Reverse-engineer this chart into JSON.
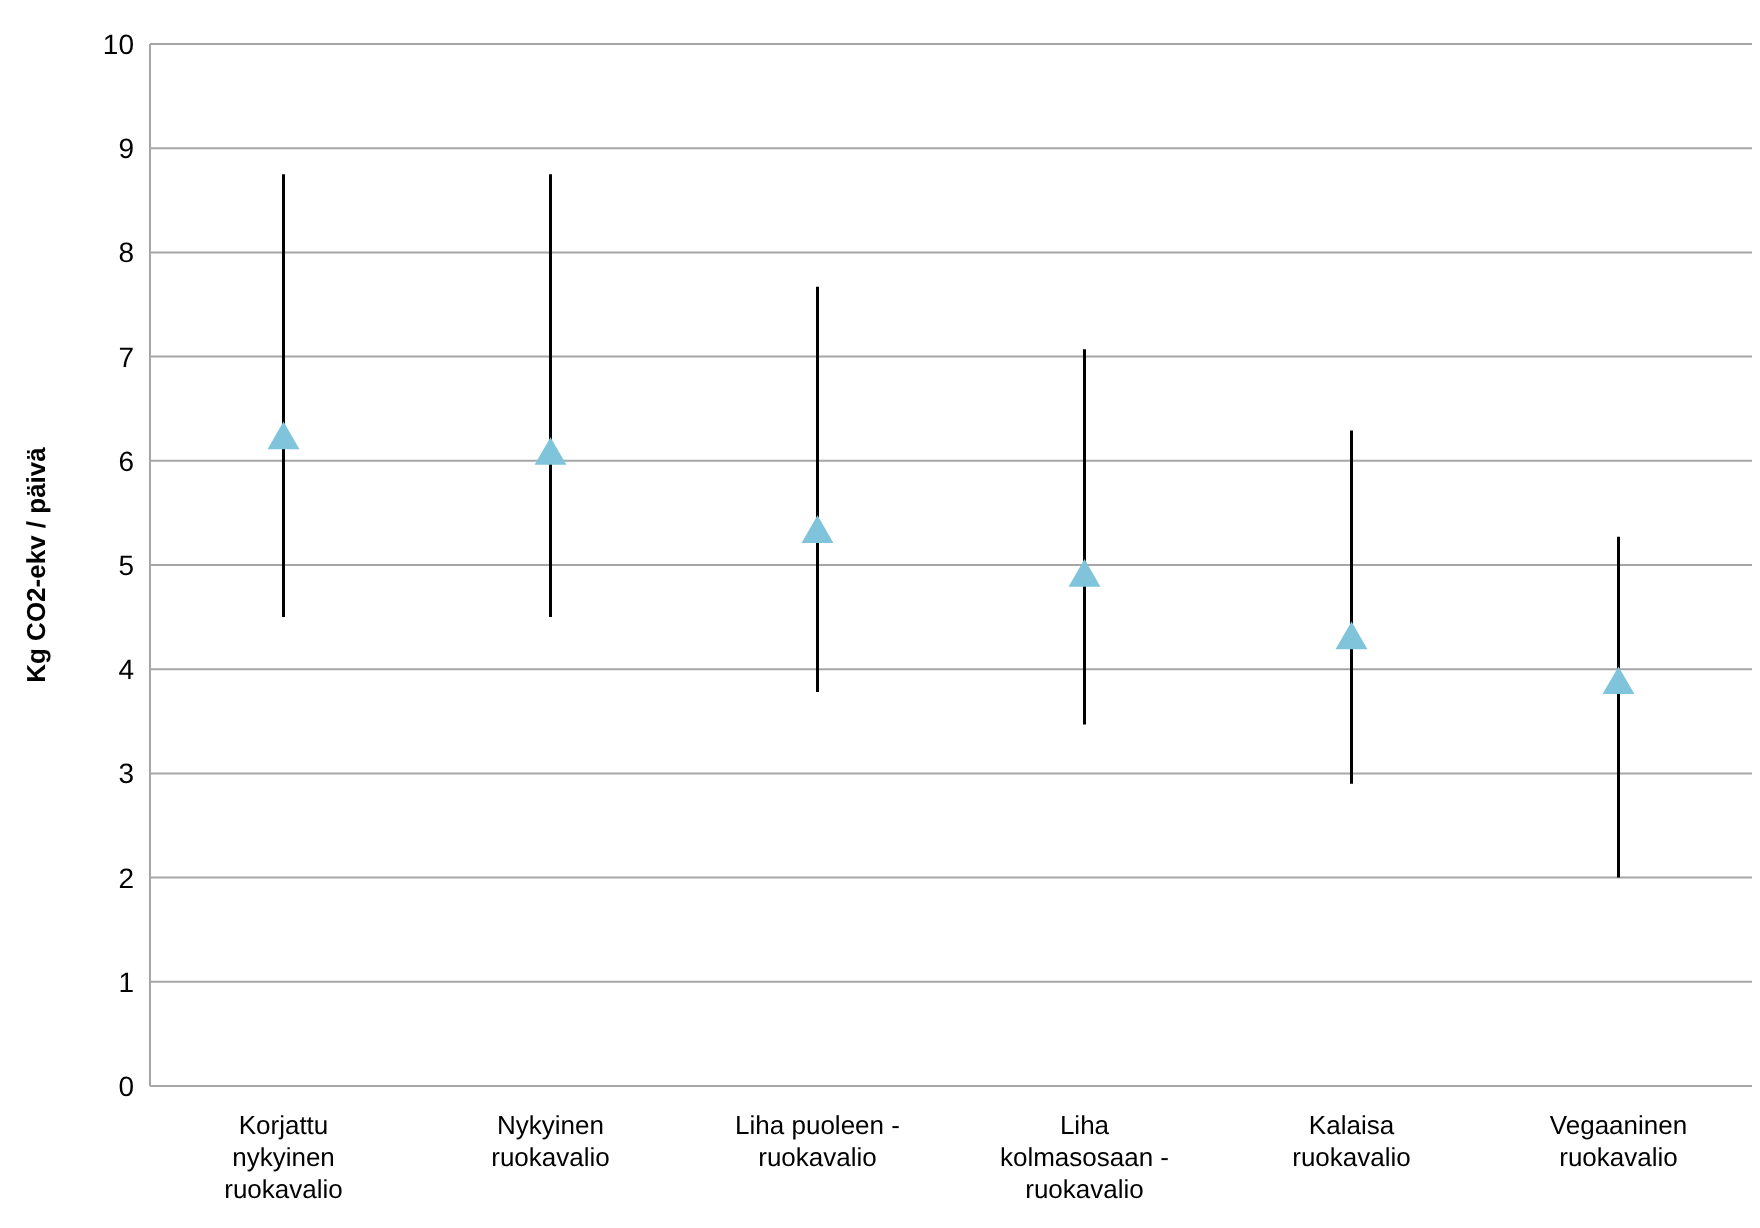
{
  "chart_data": {
    "type": "scatter",
    "ylabel": "Kg CO2-ekv / päivä",
    "categories": [
      "Korjattu nykyinen ruokavalio",
      "Nykyinen ruokavalio",
      "Liha puoleen - ruokavalio",
      "Liha kolmasosaan - ruokavalio",
      "Kalaisa ruokavalio",
      "Vegaaninen ruokavalio"
    ],
    "values": [
      6.2,
      6.05,
      5.3,
      4.88,
      4.28,
      3.85
    ],
    "errors": [
      [
        4.5,
        8.75
      ],
      [
        4.5,
        8.75
      ],
      [
        3.78,
        7.67
      ],
      [
        3.47,
        7.07
      ],
      [
        2.9,
        6.29
      ],
      [
        2.0,
        5.27
      ]
    ],
    "color": "#7fc4db",
    "marker": "triangle",
    "grid": "y",
    "ylim": [
      0,
      10
    ],
    "yticks": [
      0,
      1,
      2,
      3,
      4,
      5,
      6,
      7,
      8,
      9,
      10
    ]
  }
}
